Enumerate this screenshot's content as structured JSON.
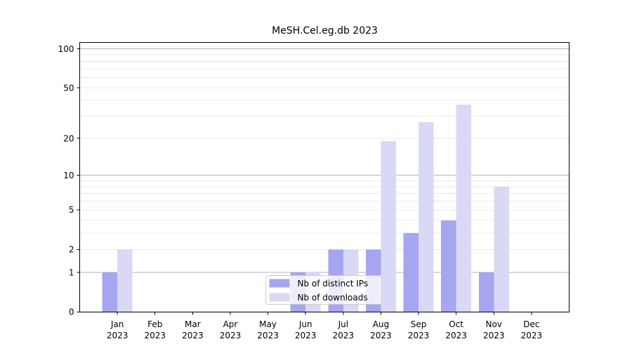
{
  "figure": {
    "title": "MeSH.Cel.eg.db 2023"
  },
  "chart_data": {
    "type": "bar",
    "title": "MeSH.Cel.eg.db 2023",
    "categories": [
      {
        "month": "Jan",
        "year": "2023"
      },
      {
        "month": "Feb",
        "year": "2023"
      },
      {
        "month": "Mar",
        "year": "2023"
      },
      {
        "month": "Apr",
        "year": "2023"
      },
      {
        "month": "May",
        "year": "2023"
      },
      {
        "month": "Jun",
        "year": "2023"
      },
      {
        "month": "Jul",
        "year": "2023"
      },
      {
        "month": "Aug",
        "year": "2023"
      },
      {
        "month": "Sep",
        "year": "2023"
      },
      {
        "month": "Oct",
        "year": "2023"
      },
      {
        "month": "Nov",
        "year": "2023"
      },
      {
        "month": "Dec",
        "year": "2023"
      }
    ],
    "series": [
      {
        "name": "Nb of distinct IPs",
        "color": "#a5a5f0",
        "values": [
          1,
          0,
          0,
          0,
          0,
          1,
          2,
          2,
          3,
          4,
          1,
          0
        ]
      },
      {
        "name": "Nb of downloads",
        "color": "#d9d9f6",
        "values": [
          2,
          0,
          0,
          0,
          0,
          1,
          2,
          19,
          27,
          37,
          8,
          0
        ]
      }
    ],
    "yscale": "log1p",
    "ylim": [
      0,
      112
    ],
    "ytick_values": [
      0,
      1,
      2,
      5,
      10,
      20,
      50,
      100
    ],
    "ytick_labels": [
      "0",
      "1",
      "2",
      "5",
      "10",
      "20",
      "50",
      "100"
    ],
    "grid": {
      "major_values": [
        1,
        10,
        100
      ],
      "minor_values": [
        2,
        3,
        4,
        5,
        6,
        7,
        8,
        9,
        20,
        30,
        40,
        50,
        60,
        70,
        80,
        90
      ],
      "major_color": "#b3b3b3",
      "minor_color": "#e8e8e8"
    },
    "legend": {
      "position": "lower center",
      "entries": [
        "Nb of distinct IPs",
        "Nb of downloads"
      ],
      "background": "rgba(255,255,255,0.8)",
      "border_color": "#cccccc"
    },
    "axis_color": "#000000",
    "background": "#ffffff"
  }
}
